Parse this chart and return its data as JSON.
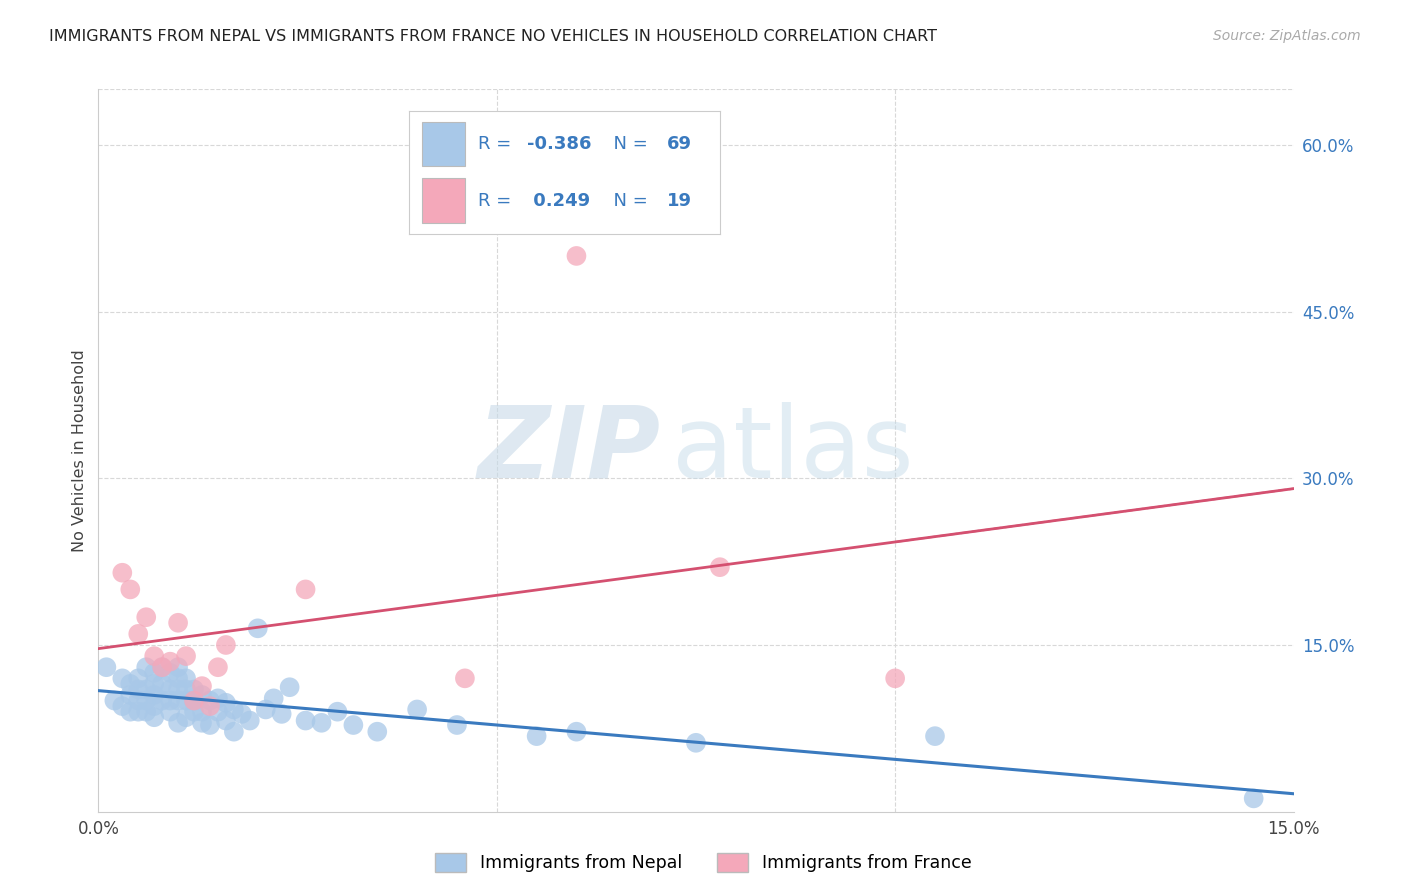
{
  "title": "IMMIGRANTS FROM NEPAL VS IMMIGRANTS FROM FRANCE NO VEHICLES IN HOUSEHOLD CORRELATION CHART",
  "source": "Source: ZipAtlas.com",
  "ylabel": "No Vehicles in Household",
  "xlim": [
    0.0,
    0.15
  ],
  "ylim": [
    0.0,
    0.65
  ],
  "nepal_R": -0.386,
  "nepal_N": 69,
  "france_R": 0.249,
  "france_N": 19,
  "nepal_color": "#a8c8e8",
  "france_color": "#f4a8ba",
  "nepal_line_color": "#3a7abf",
  "france_line_color": "#d45070",
  "legend_text_color": "#3a7abf",
  "right_axis_color": "#3a7abf",
  "nepal_x": [
    0.001,
    0.002,
    0.003,
    0.003,
    0.004,
    0.004,
    0.004,
    0.005,
    0.005,
    0.005,
    0.005,
    0.006,
    0.006,
    0.006,
    0.006,
    0.007,
    0.007,
    0.007,
    0.007,
    0.007,
    0.008,
    0.008,
    0.008,
    0.009,
    0.009,
    0.009,
    0.009,
    0.01,
    0.01,
    0.01,
    0.01,
    0.01,
    0.011,
    0.011,
    0.011,
    0.011,
    0.012,
    0.012,
    0.012,
    0.013,
    0.013,
    0.013,
    0.014,
    0.014,
    0.015,
    0.015,
    0.016,
    0.016,
    0.017,
    0.017,
    0.018,
    0.019,
    0.02,
    0.021,
    0.022,
    0.023,
    0.024,
    0.026,
    0.028,
    0.03,
    0.032,
    0.035,
    0.04,
    0.045,
    0.055,
    0.06,
    0.075,
    0.105,
    0.145
  ],
  "nepal_y": [
    0.13,
    0.1,
    0.12,
    0.095,
    0.115,
    0.105,
    0.09,
    0.12,
    0.11,
    0.1,
    0.09,
    0.13,
    0.11,
    0.1,
    0.09,
    0.125,
    0.115,
    0.105,
    0.095,
    0.085,
    0.13,
    0.115,
    0.1,
    0.125,
    0.11,
    0.1,
    0.09,
    0.13,
    0.12,
    0.11,
    0.1,
    0.08,
    0.12,
    0.11,
    0.1,
    0.085,
    0.11,
    0.1,
    0.09,
    0.105,
    0.09,
    0.08,
    0.1,
    0.078,
    0.102,
    0.09,
    0.098,
    0.082,
    0.092,
    0.072,
    0.088,
    0.082,
    0.165,
    0.092,
    0.102,
    0.088,
    0.112,
    0.082,
    0.08,
    0.09,
    0.078,
    0.072,
    0.092,
    0.078,
    0.068,
    0.072,
    0.062,
    0.068,
    0.012
  ],
  "france_x": [
    0.003,
    0.004,
    0.005,
    0.006,
    0.007,
    0.008,
    0.009,
    0.01,
    0.011,
    0.012,
    0.013,
    0.014,
    0.015,
    0.016,
    0.026,
    0.046,
    0.06,
    0.078,
    0.1
  ],
  "france_y": [
    0.215,
    0.2,
    0.16,
    0.175,
    0.14,
    0.13,
    0.135,
    0.17,
    0.14,
    0.1,
    0.113,
    0.095,
    0.13,
    0.15,
    0.2,
    0.12,
    0.5,
    0.22,
    0.12
  ],
  "background_color": "#ffffff",
  "grid_color": "#d8d8d8"
}
